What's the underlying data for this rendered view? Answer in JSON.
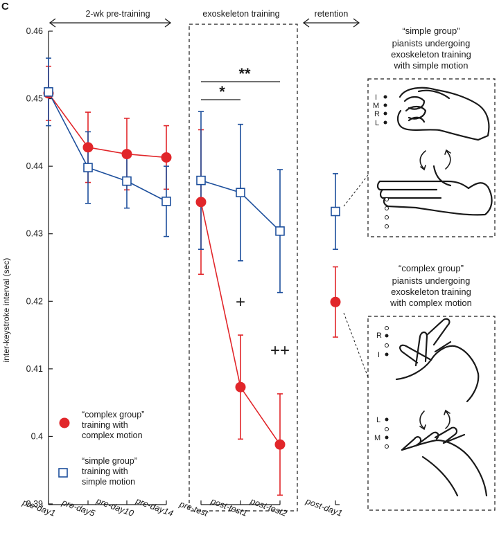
{
  "panel_label": "C",
  "colors": {
    "complex": "#e1262a",
    "simple": "#1d4f9c",
    "ink": "#1a1a1a"
  },
  "chart_data": {
    "type": "line",
    "ylabel": "inter-keystroke interval (sec)",
    "ylim": [
      0.39,
      0.46
    ],
    "yticks": [
      0.39,
      0.4,
      0.41,
      0.42,
      0.43,
      0.44,
      0.45,
      0.46
    ],
    "ytick_labels": [
      "0.39",
      "0.4",
      "0.41",
      "0.42",
      "0.43",
      "0.44",
      "0.45",
      "0.46"
    ],
    "categories": [
      "pre-day1",
      "pre-day5",
      "pre-day10",
      "pre-day14",
      "pre-test",
      "post-test1",
      "post-test2",
      "post-day1"
    ],
    "phases": [
      {
        "label": "2-wk pre-training",
        "categories": [
          "pre-day1",
          "pre-day5",
          "pre-day10",
          "pre-day14"
        ]
      },
      {
        "label": "exoskeleton training",
        "categories": [
          "pre-test",
          "post-test1",
          "post-test2"
        ]
      },
      {
        "label": "retention",
        "categories": [
          "post-day1"
        ]
      }
    ],
    "series": [
      {
        "name": "complex group",
        "legend_line1": "“complex group”",
        "legend_line2": "training with",
        "legend_line3": "complex motion",
        "marker": "filled-circle",
        "values": [
          0.4508,
          0.4428,
          0.4418,
          0.4413,
          0.4347,
          0.4073,
          0.3988,
          0.4199
        ],
        "errors": [
          0.004,
          0.0052,
          0.0053,
          0.0047,
          0.0107,
          0.0077,
          0.0075,
          0.0052
        ],
        "connected_segments": [
          [
            0,
            3
          ],
          [
            4,
            6
          ]
        ]
      },
      {
        "name": "simple group",
        "legend_line1": "“simple group”",
        "legend_line2": "training with",
        "legend_line3": "simple motion",
        "marker": "open-square",
        "values": [
          0.451,
          0.4398,
          0.4378,
          0.4348,
          0.4379,
          0.4361,
          0.4304,
          0.4333
        ],
        "errors": [
          0.005,
          0.0053,
          0.004,
          0.0052,
          0.0102,
          0.0101,
          0.0091,
          0.0056
        ],
        "connected_segments": [
          [
            0,
            3
          ],
          [
            4,
            6
          ]
        ]
      }
    ],
    "significance": [
      {
        "label": "**",
        "from": "pre-test",
        "to": "post-test2"
      },
      {
        "label": "*",
        "from": "pre-test",
        "to": "post-test1"
      }
    ],
    "markers": [
      {
        "label": "+",
        "category": "post-test1"
      },
      {
        "label": "++",
        "category": "post-test2"
      }
    ]
  },
  "insets": {
    "simple": {
      "title": "“simple group”",
      "lines": [
        "pianists undergoing",
        "exoskeleton training",
        "with simple motion"
      ],
      "finger_labels": [
        "I",
        "M",
        "R",
        "L"
      ]
    },
    "complex": {
      "title": "“complex group”",
      "lines": [
        "pianists undergoing",
        "exoskeleton training",
        "with complex motion"
      ],
      "finger_labels_top": [
        "R",
        "I"
      ],
      "finger_labels_bottom": [
        "L",
        "M"
      ]
    }
  }
}
